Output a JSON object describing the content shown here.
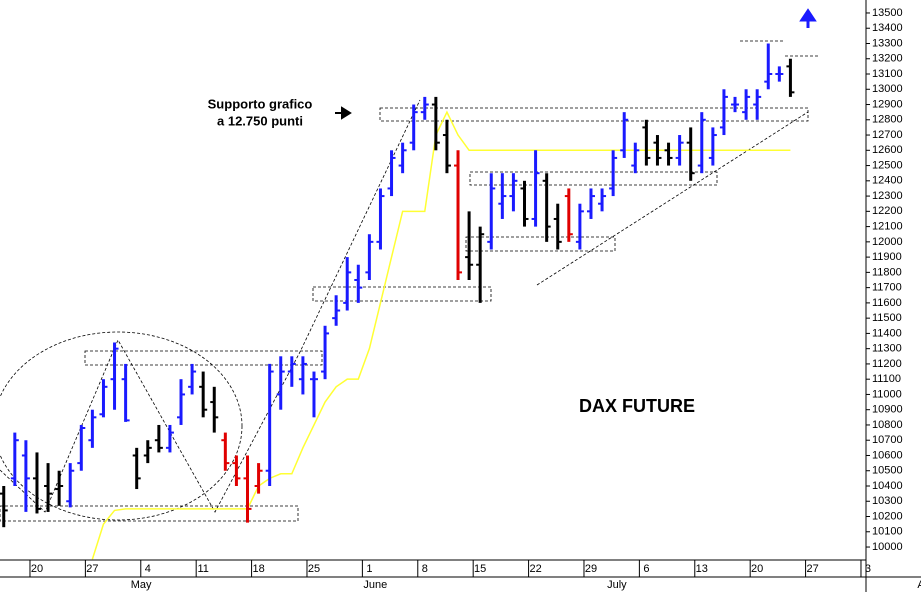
{
  "chart_data": {
    "type": "ohlc",
    "title": "DAX FUTURE",
    "annotations": [
      "Supporto grafico",
      "a 12.750 punti"
    ],
    "categories": [
      null,
      null,
      null,
      "20",
      null,
      null,
      null,
      null,
      "27",
      null,
      null,
      null,
      null,
      "4",
      null,
      null,
      null,
      null,
      "11",
      null,
      null,
      null,
      null,
      "18",
      null,
      null,
      null,
      null,
      "25",
      null,
      null,
      null,
      null,
      "1",
      null,
      null,
      null,
      null,
      "8",
      null,
      null,
      null,
      null,
      "15",
      null,
      null,
      null,
      null,
      "22",
      null,
      null,
      null,
      null,
      "29",
      null,
      null,
      null,
      null,
      "6",
      null,
      null,
      null,
      null,
      "13",
      null,
      null,
      null,
      null,
      "20",
      null,
      null,
      null,
      null,
      "27",
      null,
      null,
      null,
      null,
      "3",
      null,
      null,
      null,
      null,
      null
    ],
    "month_labels": [
      null,
      null,
      null,
      null,
      null,
      null,
      null,
      null,
      null,
      null,
      null,
      null,
      "May",
      null,
      null,
      null,
      null,
      null,
      null,
      null,
      null,
      null,
      null,
      null,
      null,
      null,
      null,
      null,
      null,
      null,
      null,
      null,
      null,
      "June",
      null,
      null,
      null,
      null,
      null,
      null,
      null,
      null,
      null,
      null,
      null,
      null,
      null,
      null,
      null,
      null,
      null,
      null,
      null,
      null,
      null,
      "July",
      null,
      null,
      null,
      null,
      null,
      null,
      null,
      null,
      null,
      null,
      null,
      null,
      null,
      null,
      null,
      null,
      null,
      null,
      null,
      null,
      null,
      null,
      null,
      null,
      null,
      null,
      null,
      "A"
    ],
    "open": [
      10350,
      10450,
      10600,
      10450,
      10400,
      10380,
      10300,
      10550,
      10700,
      10870,
      11100,
      11100,
      10600,
      10600,
      10700,
      10650,
      10850,
      11050,
      11050,
      10950,
      10700,
      10550,
      10450,
      10400,
      10500,
      11000,
      11150,
      11100,
      11100,
      11150,
      11500,
      11600,
      11750,
      11800,
      12000,
      12350,
      12500,
      12650,
      12850,
      12900,
      12700,
      12500,
      11900,
      11850,
      12000,
      12250,
      12300,
      12350,
      12150,
      12400,
      12150,
      12300,
      12000,
      12200,
      12250,
      12350,
      12600,
      12500,
      12750,
      12650,
      12600,
      12550,
      12650,
      12500,
      12550,
      12750,
      12900,
      12850,
      12900,
      13050,
      13100,
      13150,
      null,
      null,
      null,
      null,
      null,
      null,
      null,
      null,
      null,
      null,
      null,
      null
    ],
    "high": [
      10400,
      10750,
      10700,
      10620,
      10550,
      10500,
      10550,
      10800,
      10900,
      11100,
      11340,
      11200,
      10650,
      10700,
      10800,
      10800,
      11100,
      11200,
      11150,
      11050,
      10750,
      10600,
      10600,
      10550,
      11200,
      11250,
      11250,
      11250,
      11150,
      11450,
      11650,
      11900,
      11850,
      12050,
      12350,
      12600,
      12650,
      12900,
      12950,
      12950,
      12800,
      12600,
      12200,
      12100,
      12450,
      12450,
      12450,
      12400,
      12600,
      12450,
      12250,
      12350,
      12250,
      12350,
      12350,
      12600,
      12850,
      12650,
      12800,
      12700,
      12650,
      12700,
      12750,
      12850,
      12750,
      13000,
      12950,
      13000,
      13000,
      13300,
      13150,
      13200,
      null,
      null,
      null,
      null,
      null,
      null,
      null,
      null,
      null,
      null,
      null,
      null
    ],
    "low": [
      10130,
      10400,
      10230,
      10220,
      10230,
      10270,
      10260,
      10500,
      10650,
      10850,
      10900,
      10820,
      10380,
      10550,
      10620,
      10620,
      10800,
      11000,
      10850,
      10750,
      10500,
      10400,
      10160,
      10350,
      10400,
      10900,
      11050,
      11000,
      10850,
      11100,
      11450,
      11550,
      11600,
      11750,
      11950,
      12300,
      12450,
      12600,
      12800,
      12600,
      12450,
      11750,
      11750,
      11600,
      11950,
      12150,
      12200,
      12100,
      12100,
      12000,
      11950,
      12000,
      11950,
      12150,
      12200,
      12300,
      12550,
      12450,
      12500,
      12500,
      12500,
      12500,
      12400,
      12450,
      12500,
      12700,
      12850,
      12800,
      12800,
      13000,
      13050,
      12950,
      null,
      null,
      null,
      null,
      null,
      null,
      null,
      null,
      null,
      null,
      null,
      null
    ],
    "close": [
      10240,
      10700,
      10450,
      10250,
      10350,
      10400,
      10500,
      10780,
      10850,
      11050,
      11300,
      10830,
      10450,
      10650,
      10650,
      10750,
      11000,
      11150,
      10900,
      10850,
      10550,
      10450,
      10250,
      10500,
      11150,
      11150,
      11200,
      11200,
      11100,
      11400,
      11550,
      11800,
      11700,
      12000,
      12300,
      12550,
      12600,
      12850,
      12900,
      12650,
      12500,
      11800,
      11850,
      12050,
      12350,
      12300,
      12400,
      12150,
      12450,
      12100,
      12000,
      12050,
      12200,
      12300,
      12300,
      12550,
      12800,
      12600,
      12550,
      12550,
      12550,
      12650,
      12450,
      12800,
      12700,
      12950,
      12900,
      12950,
      12950,
      13100,
      13100,
      12980,
      null,
      null,
      null,
      null,
      null,
      null,
      null,
      null,
      null,
      null,
      null,
      null
    ],
    "colors": [
      "#000000",
      "#1a1aff",
      "#1a1aff",
      "#000000",
      "#000000",
      "#000000",
      "#1a1aff",
      "#1a1aff",
      "#1a1aff",
      "#1a1aff",
      "#1a1aff",
      "#1a1aff",
      "#000000",
      "#000000",
      "#000000",
      "#1a1aff",
      "#1a1aff",
      "#1a1aff",
      "#000000",
      "#000000",
      "#e00000",
      "#e00000",
      "#e00000",
      "#e00000",
      "#1a1aff",
      "#1a1aff",
      "#1a1aff",
      "#1a1aff",
      "#1a1aff",
      "#1a1aff",
      "#1a1aff",
      "#1a1aff",
      "#1a1aff",
      "#1a1aff",
      "#1a1aff",
      "#1a1aff",
      "#1a1aff",
      "#1a1aff",
      "#1a1aff",
      "#000000",
      "#000000",
      "#e00000",
      "#000000",
      "#000000",
      "#1a1aff",
      "#1a1aff",
      "#1a1aff",
      "#000000",
      "#1a1aff",
      "#000000",
      "#000000",
      "#e00000",
      "#1a1aff",
      "#1a1aff",
      "#1a1aff",
      "#1a1aff",
      "#1a1aff",
      "#1a1aff",
      "#000000",
      "#000000",
      "#000000",
      "#1a1aff",
      "#000000",
      "#1a1aff",
      "#1a1aff",
      "#1a1aff",
      "#1a1aff",
      "#1a1aff",
      "#1a1aff",
      "#1a1aff",
      "#1a1aff",
      "#000000",
      null,
      null,
      null,
      null,
      null,
      null,
      null,
      null,
      null,
      null,
      null,
      null
    ],
    "line": {
      "color": "#ffff33",
      "values": [
        null,
        null,
        null,
        null,
        null,
        null,
        null,
        null,
        9920,
        10150,
        10240,
        10250,
        10250,
        10250,
        10250,
        10250,
        10250,
        10250,
        10250,
        10250,
        10250,
        10250,
        10250,
        10400,
        10450,
        10480,
        10480,
        10650,
        10800,
        10950,
        11050,
        11100,
        11100,
        11300,
        11600,
        11900,
        12200,
        12200,
        12200,
        12700,
        12850,
        12700,
        12600,
        12600,
        12600,
        12600,
        12600,
        12600,
        12600,
        12600,
        12600,
        12600,
        12600,
        12600,
        12600,
        12600,
        12600,
        12600,
        12600,
        12600,
        12600,
        12600,
        12600,
        12600,
        12600,
        12600,
        12600,
        12600,
        12600,
        12600,
        12600,
        12600,
        null,
        null,
        null,
        null,
        null,
        null,
        null,
        null,
        null,
        null,
        null,
        null
      ]
    },
    "ylim": [
      9915,
      13585
    ],
    "yticks": [
      10000,
      10100,
      10200,
      10300,
      10400,
      10500,
      10600,
      10700,
      10800,
      10900,
      11000,
      11100,
      11200,
      11300,
      11400,
      11500,
      11600,
      11700,
      11800,
      11900,
      12000,
      12100,
      12200,
      12300,
      12400,
      12500,
      12600,
      12700,
      12800,
      12900,
      13000,
      13100,
      13200,
      13300,
      13400,
      13500
    ],
    "y_axis_side": "right"
  }
}
